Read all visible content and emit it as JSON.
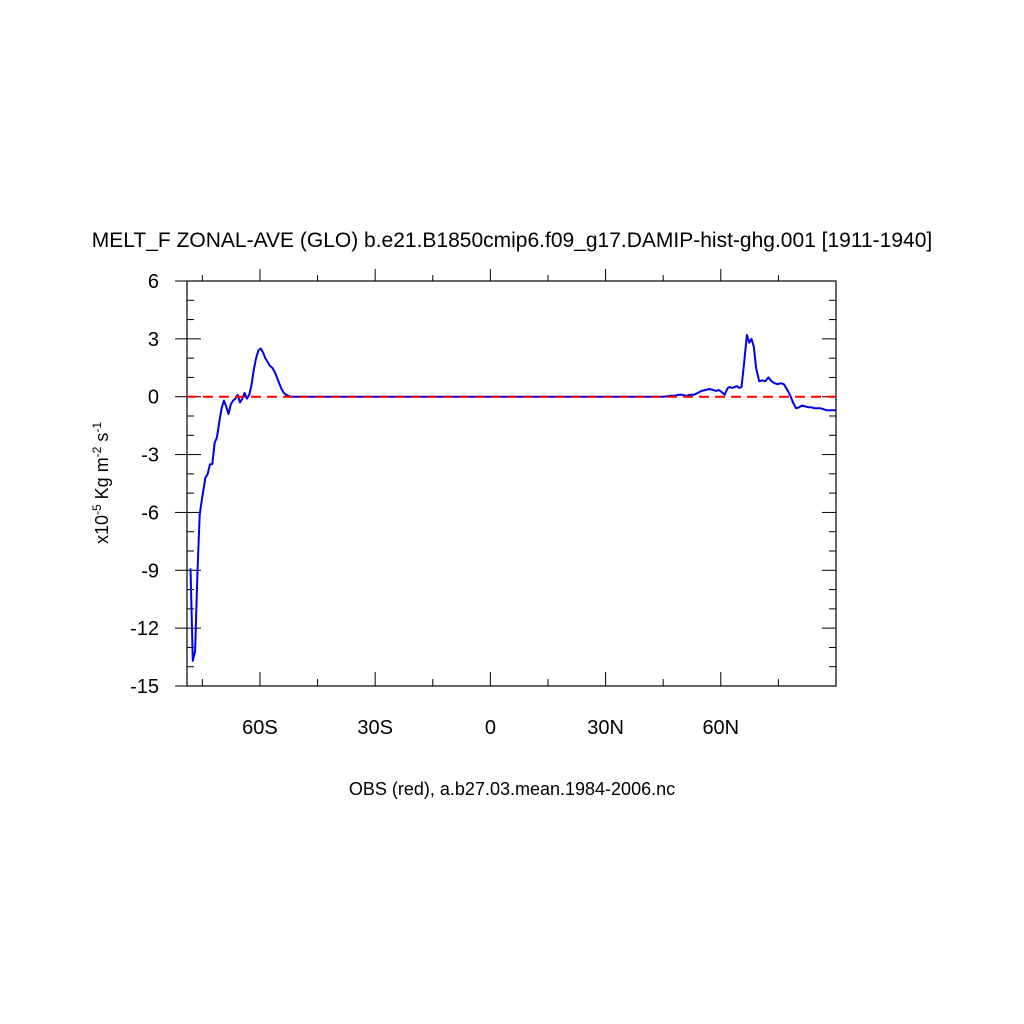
{
  "chart_data": {
    "type": "line",
    "title": "MELT_F ZONAL-AVE (GLO) b.e21.B1850cmip6.f09_g17.DAMIP-hist-ghg.001 [1911-1940]",
    "xlabel": "OBS (red), a.b27.03.mean.1984-2006.nc",
    "ylabel": {
      "prefix": "x10",
      "exp1": "-5",
      "mid": " Kg m",
      "exp2": "-2",
      "mid2": " s",
      "exp3": "-1"
    },
    "xlim": [
      -79,
      90
    ],
    "ylim": [
      -15,
      6
    ],
    "x_ticks": [
      {
        "value": -60,
        "label": "60S"
      },
      {
        "value": -30,
        "label": "30S"
      },
      {
        "value": 0,
        "label": "0"
      },
      {
        "value": 30,
        "label": "30N"
      },
      {
        "value": 60,
        "label": "60N"
      }
    ],
    "y_ticks": [
      {
        "value": 6,
        "label": "6"
      },
      {
        "value": 3,
        "label": "3"
      },
      {
        "value": 0,
        "label": "0"
      },
      {
        "value": -3,
        "label": "-3"
      },
      {
        "value": -6,
        "label": "-6"
      },
      {
        "value": -9,
        "label": "-9"
      },
      {
        "value": -12,
        "label": "-12"
      },
      {
        "value": -15,
        "label": "-15"
      }
    ],
    "grid": false,
    "series": [
      {
        "color": "#0000ee",
        "style": "solid",
        "x": [
          -78.1,
          -77.5,
          -76.9,
          -76.3,
          -75.7,
          -75.1,
          -74.2,
          -73.6,
          -73.0,
          -72.4,
          -71.8,
          -71.2,
          -70.6,
          -70.0,
          -69.4,
          -68.8,
          -68.2,
          -67.6,
          -67.0,
          -66.4,
          -65.8,
          -65.2,
          -64.6,
          -64.0,
          -63.4,
          -62.8,
          -62.2,
          -61.6,
          -61.0,
          -60.4,
          -59.8,
          -59.2,
          -58.6,
          -58.0,
          -57.4,
          -56.8,
          -56.2,
          -55.6,
          -55.0,
          -54.4,
          -53.8,
          -53.2,
          -52.6,
          -52.0,
          -50.0,
          -45.0,
          -40.0,
          -30.0,
          -20.0,
          -10.0,
          0.0,
          10.0,
          20.0,
          30.0,
          40.0,
          45.0,
          47.0,
          48.0,
          49.0,
          50.0,
          51.0,
          52.0,
          53.0,
          54.0,
          55.0,
          56.0,
          57.0,
          58.0,
          58.8,
          59.4,
          60.2,
          61.0,
          61.8,
          62.4,
          63.0,
          63.6,
          64.2,
          64.8,
          65.4,
          66.0,
          66.8,
          67.4,
          68.0,
          68.6,
          69.2,
          70.0,
          70.8,
          71.6,
          72.4,
          73.2,
          74.0,
          74.8,
          75.6,
          76.4,
          77.2,
          78.0,
          78.8,
          79.6,
          80.4,
          81.2,
          82.0,
          82.8,
          83.6,
          84.4,
          85.2,
          86.0,
          86.8,
          87.6,
          88.4,
          89.2,
          90.0
        ],
        "y": [
          -8.9,
          -13.7,
          -13.2,
          -9.2,
          -6.1,
          -5.3,
          -4.2,
          -4.0,
          -3.5,
          -3.5,
          -2.4,
          -2.1,
          -1.3,
          -0.6,
          -0.2,
          -0.5,
          -0.9,
          -0.4,
          -0.2,
          -0.1,
          0.1,
          -0.3,
          -0.1,
          0.2,
          -0.1,
          0.1,
          0.6,
          1.4,
          2.0,
          2.4,
          2.5,
          2.3,
          2.0,
          1.8,
          1.6,
          1.5,
          1.3,
          1.0,
          0.7,
          0.4,
          0.2,
          0.1,
          0.05,
          0.0,
          0.0,
          0.0,
          0.0,
          0.0,
          0.0,
          0.0,
          0.0,
          0.0,
          0.0,
          0.0,
          0.0,
          0.0,
          0.05,
          0.05,
          0.1,
          0.1,
          0.05,
          0.1,
          0.1,
          0.2,
          0.3,
          0.35,
          0.4,
          0.35,
          0.3,
          0.35,
          0.25,
          0.1,
          0.45,
          0.5,
          0.45,
          0.5,
          0.55,
          0.45,
          0.5,
          1.6,
          3.2,
          2.8,
          3.0,
          2.6,
          1.5,
          0.8,
          0.85,
          0.8,
          1.0,
          0.8,
          0.7,
          0.65,
          0.7,
          0.65,
          0.4,
          0.1,
          -0.3,
          -0.6,
          -0.55,
          -0.45,
          -0.5,
          -0.55,
          -0.55,
          -0.6,
          -0.6,
          -0.6,
          -0.65,
          -0.7,
          -0.7,
          -0.7,
          -0.7
        ]
      },
      {
        "color": "#ff0000",
        "style": "dashed",
        "x": [
          -79,
          90
        ],
        "y": [
          0.0,
          0.0
        ]
      }
    ]
  }
}
